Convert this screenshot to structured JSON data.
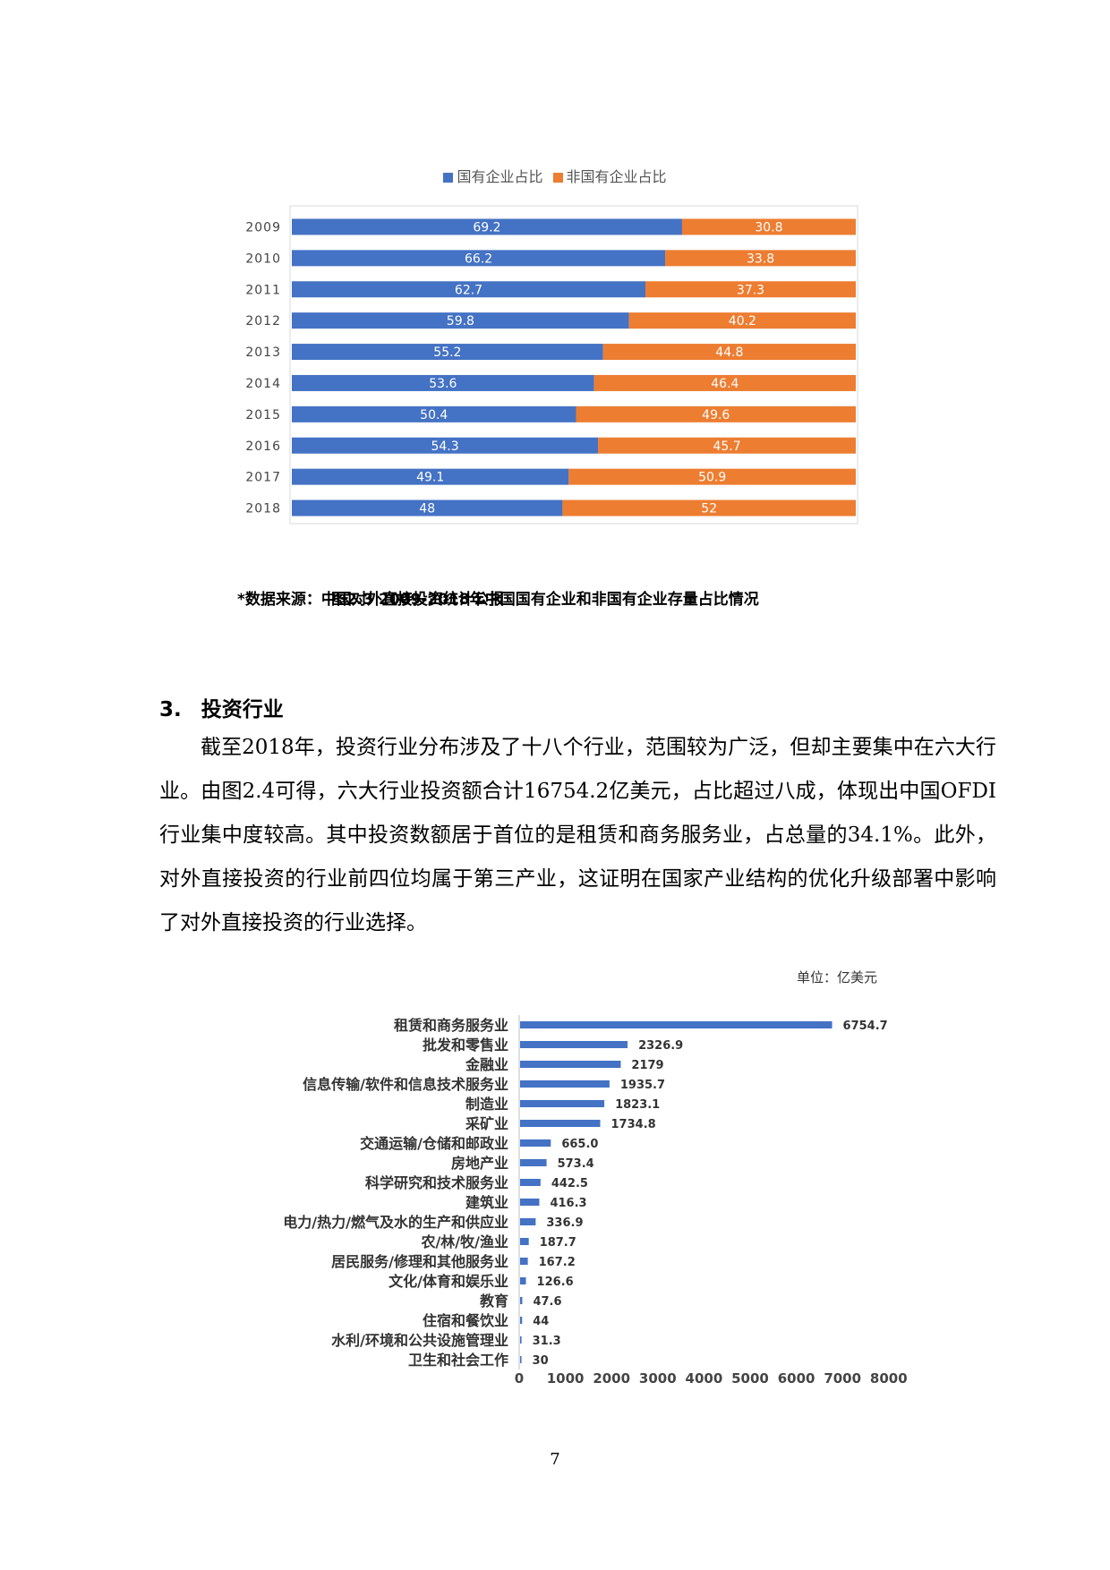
{
  "chart_data": [
    {
      "type": "bar",
      "orientation": "horizontal",
      "stacked": "percent",
      "categories": [
        "2009",
        "2010",
        "2011",
        "2012",
        "2013",
        "2014",
        "2015",
        "2016",
        "2017",
        "2018"
      ],
      "series": [
        {
          "name": "国有企业占比",
          "color": "#4472C4",
          "values": [
            69.2,
            66.2,
            62.7,
            59.8,
            55.2,
            53.6,
            50.4,
            54.3,
            49.1,
            48
          ]
        },
        {
          "name": "非国有企业占比",
          "color": "#ED7D31",
          "values": [
            30.8,
            33.8,
            37.3,
            40.2,
            44.8,
            46.4,
            49.6,
            45.7,
            50.9,
            52
          ]
        }
      ],
      "legend_position": "top",
      "xlim": [
        0,
        100
      ]
    },
    {
      "type": "bar",
      "orientation": "horizontal",
      "unit": "单位：亿美元",
      "color": "#4472C4",
      "categories": [
        "租赁和商务服务业",
        "批发和零售业",
        "金融业",
        "信息传输/软件和信息技术服务业",
        "制造业",
        "采矿业",
        "交通运输/仓储和邮政业",
        "房地产业",
        "科学研究和技术服务业",
        "建筑业",
        "电力/热力/燃气及水的生产和供应业",
        "农/林/牧/渔业",
        "居民服务/修理和其他服务业",
        "文化/体育和娱乐业",
        "教育",
        "住宿和餐饮业",
        "水利/环境和公共设施管理业",
        "卫生和社会工作"
      ],
      "values": [
        6754.7,
        2326.9,
        2179,
        1935.7,
        1823.1,
        1734.8,
        665.0,
        573.4,
        442.5,
        416.3,
        336.9,
        187.7,
        167.2,
        126.6,
        47.6,
        44,
        31.3,
        30
      ],
      "value_labels": [
        "6754.7",
        "2326.9",
        "2179",
        "1935.7",
        "1823.1",
        "1734.8",
        "665.0",
        "573.4",
        "442.5",
        "416.3",
        "336.9",
        "187.7",
        "167.2",
        "126.6",
        "47.6",
        "44",
        "31.3",
        "30"
      ],
      "xticks": [
        0,
        1000,
        2000,
        3000,
        4000,
        5000,
        6000,
        7000,
        8000
      ],
      "xlim": [
        0,
        8000
      ]
    }
  ],
  "source_note": "*数据来源：中国对外直接投资统计公报",
  "figure_caption": "图2.3 2009-2018年中国国有企业和非国有企业存量占比情况",
  "section": {
    "number": "3.",
    "title": "投资行业"
  },
  "paragraph": "截至2018年，投资行业分布涉及了十八个行业，范围较为广泛，但却主要集中在六大行业。由图2.4可得，六大行业投资额合计16754.2亿美元，占比超过八成，体现出中国OFDI行业集中度较高。其中投资数额居于首位的是租赁和商务服务业，占总量的34.1%。此外，对外直接投资的行业前四位均属于第三产业，这证明在国家产业结构的优化升级部署中影响了对外直接投资的行业选择。",
  "unit_label": "单位：亿美元",
  "page_number": "7"
}
